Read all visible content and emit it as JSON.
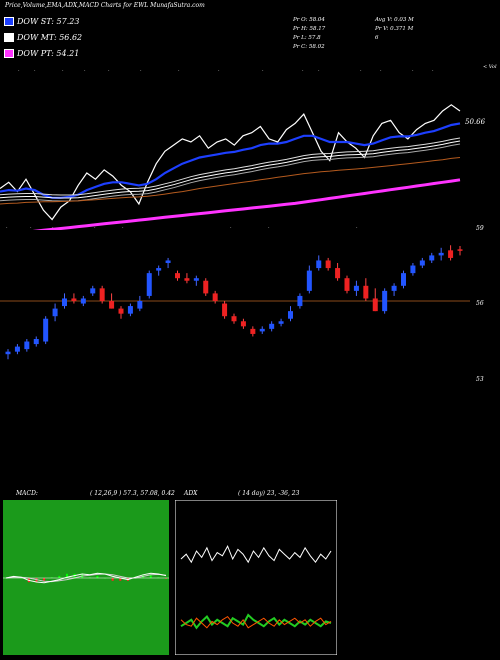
{
  "header": {
    "title": "Price,Volume,EMA,ADX,MACD Charts for EWL MunafaSutra.com"
  },
  "legend": [
    {
      "label": "DOW ST: 57.23",
      "color": "#1d3fff"
    },
    {
      "label": "DOW MT: 56.62",
      "color": "#ffffff"
    },
    {
      "label": "DOW PT: 54.21",
      "color": "#ff33ff"
    }
  ],
  "quote": {
    "pr_o": "Pr O: 58.04",
    "pr_h": "Pr H: 58.17",
    "pr_l": "Pr L: 57.8",
    "pr_c": "Pr C: 58.02",
    "avg_v": "Avg V: 0.03 M",
    "pr_v": "Pr V: 0.371 M",
    "six": "6"
  },
  "top_panel": {
    "price_label": "50.66",
    "vol_label": "< Vol"
  },
  "bottom_right_axis": [
    "59",
    "56",
    "53"
  ],
  "macd": {
    "title": "MACD:",
    "params": "( 12,26,9 ) 57.3, 57.08, 0.42"
  },
  "adx": {
    "title": "ADX",
    "params": "( 14 day) 23, -36, 23"
  },
  "chart_data": [
    {
      "type": "line",
      "name": "ema-panel",
      "series": [
        {
          "name": "price",
          "color": "#ffffff",
          "values": [
            15,
            17,
            14,
            18,
            13,
            8,
            5,
            9,
            11,
            16,
            20,
            18,
            21,
            19,
            16,
            14,
            10,
            17,
            23,
            27,
            29,
            31,
            30,
            32,
            28,
            30,
            31,
            29,
            32,
            33,
            35,
            31,
            30,
            34,
            36,
            39,
            33,
            27,
            24,
            33,
            30,
            28,
            25,
            32,
            36,
            37,
            33,
            31,
            34,
            36,
            37,
            40,
            42,
            40
          ]
        },
        {
          "name": "ema-fast",
          "color": "#1d3fff",
          "values": [
            14,
            14.5,
            14.3,
            15,
            14.5,
            13,
            12,
            12,
            12.3,
            13,
            14.5,
            15.5,
            16.5,
            17,
            17,
            16.5,
            16,
            16.5,
            18,
            20,
            21.5,
            23,
            24,
            25,
            25.5,
            26,
            26.5,
            26.8,
            27.5,
            28,
            29,
            29.5,
            29.5,
            30,
            31,
            32,
            32,
            31,
            30,
            30,
            30,
            29.5,
            29,
            29.5,
            30.5,
            31.5,
            31.8,
            31.8,
            32.3,
            33,
            33.5,
            34.5,
            35.5,
            36
          ]
        },
        {
          "name": "ema-mid",
          "color": "#dddddd",
          "values": [
            13,
            13.2,
            13.3,
            13.4,
            13.4,
            13.2,
            13,
            12.9,
            12.9,
            13,
            13.3,
            13.7,
            14.1,
            14.5,
            14.8,
            15,
            15.1,
            15.3,
            15.8,
            16.5,
            17.2,
            18,
            18.8,
            19.5,
            20,
            20.5,
            21,
            21.4,
            21.9,
            22.4,
            23,
            23.5,
            23.9,
            24.4,
            25,
            25.6,
            26,
            26.2,
            26.3,
            26.6,
            26.8,
            26.9,
            27,
            27.2,
            27.6,
            28,
            28.3,
            28.5,
            28.9,
            29.3,
            29.7,
            30.2,
            30.8,
            31.3
          ]
        },
        {
          "name": "ema-slow",
          "color": "#b45a1e",
          "values": [
            10,
            10.2,
            10.3,
            10.5,
            10.6,
            10.7,
            10.7,
            10.8,
            10.9,
            11,
            11.2,
            11.4,
            11.6,
            11.8,
            12,
            12.2,
            12.3,
            12.5,
            12.8,
            13.2,
            13.6,
            14,
            14.5,
            15,
            15.4,
            15.8,
            16.2,
            16.6,
            17,
            17.4,
            17.8,
            18.2,
            18.6,
            19,
            19.4,
            19.8,
            20.1,
            20.4,
            20.6,
            20.9,
            21.1,
            21.3,
            21.5,
            21.8,
            22.1,
            22.4,
            22.7,
            23,
            23.3,
            23.6,
            24,
            24.3,
            24.7,
            25
          ]
        },
        {
          "name": "ema-long",
          "color": "#ff33ff",
          "values": [
            0,
            0.3,
            0.6,
            0.9,
            1.2,
            1.5,
            1.8,
            2.1,
            2.4,
            2.7,
            3,
            3.3,
            3.6,
            3.9,
            4.2,
            4.5,
            4.8,
            5.1,
            5.4,
            5.7,
            6,
            6.3,
            6.6,
            6.9,
            7.2,
            7.5,
            7.8,
            8.1,
            8.4,
            8.7,
            9,
            9.3,
            9.6,
            9.9,
            10.2,
            10.6,
            11,
            11.4,
            11.8,
            12.2,
            12.6,
            13,
            13.4,
            13.8,
            14.2,
            14.6,
            15,
            15.4,
            15.8,
            16.2,
            16.6,
            17,
            17.4,
            17.8
          ]
        }
      ]
    },
    {
      "type": "candlestick",
      "name": "price-panel",
      "ylim": [
        53,
        59
      ],
      "candles": [
        [
          53.9,
          54.1,
          53.7,
          54.0
        ],
        [
          54.0,
          54.3,
          53.9,
          54.2
        ],
        [
          54.1,
          54.5,
          54.0,
          54.4
        ],
        [
          54.3,
          54.6,
          54.2,
          54.5
        ],
        [
          54.4,
          55.4,
          54.3,
          55.3
        ],
        [
          55.4,
          55.9,
          55.2,
          55.7
        ],
        [
          55.8,
          56.3,
          55.7,
          56.1
        ],
        [
          56.1,
          56.3,
          55.9,
          56.0
        ],
        [
          55.9,
          56.2,
          55.8,
          56.1
        ],
        [
          56.3,
          56.6,
          56.2,
          56.5
        ],
        [
          56.5,
          56.6,
          55.9,
          56.0
        ],
        [
          56.0,
          56.3,
          55.7,
          55.7
        ],
        [
          55.7,
          55.8,
          55.3,
          55.5
        ],
        [
          55.5,
          55.9,
          55.4,
          55.8
        ],
        [
          55.7,
          56.2,
          55.6,
          56.0
        ],
        [
          56.2,
          57.2,
          56.1,
          57.1
        ],
        [
          57.2,
          57.4,
          57.0,
          57.3
        ],
        [
          57.5,
          57.7,
          57.3,
          57.6
        ],
        [
          57.1,
          57.2,
          56.8,
          56.9
        ],
        [
          56.9,
          57.1,
          56.7,
          56.8
        ],
        [
          56.8,
          57.0,
          56.6,
          56.9
        ],
        [
          56.8,
          56.9,
          56.2,
          56.3
        ],
        [
          56.3,
          56.4,
          55.9,
          56.0
        ],
        [
          55.9,
          56.0,
          55.3,
          55.4
        ],
        [
          55.4,
          55.5,
          55.1,
          55.2
        ],
        [
          55.2,
          55.3,
          54.9,
          55.0
        ],
        [
          54.9,
          55.0,
          54.6,
          54.7
        ],
        [
          54.8,
          55.0,
          54.7,
          54.9
        ],
        [
          54.9,
          55.2,
          54.8,
          55.1
        ],
        [
          55.1,
          55.3,
          55.0,
          55.2
        ],
        [
          55.3,
          55.8,
          55.2,
          55.6
        ],
        [
          55.8,
          56.3,
          55.7,
          56.2
        ],
        [
          56.4,
          57.4,
          56.3,
          57.2
        ],
        [
          57.3,
          57.8,
          57.2,
          57.6
        ],
        [
          57.6,
          57.7,
          57.2,
          57.3
        ],
        [
          57.3,
          57.5,
          56.8,
          56.9
        ],
        [
          56.9,
          57.0,
          56.3,
          56.4
        ],
        [
          56.4,
          56.8,
          56.2,
          56.6
        ],
        [
          56.6,
          56.9,
          56.0,
          56.1
        ],
        [
          56.1,
          56.5,
          55.6,
          55.6
        ],
        [
          55.6,
          56.5,
          55.5,
          56.4
        ],
        [
          56.4,
          56.7,
          56.2,
          56.6
        ],
        [
          56.6,
          57.2,
          56.5,
          57.1
        ],
        [
          57.1,
          57.5,
          57.0,
          57.4
        ],
        [
          57.4,
          57.7,
          57.3,
          57.6
        ],
        [
          57.6,
          57.9,
          57.5,
          57.8
        ],
        [
          57.8,
          58.1,
          57.6,
          57.9
        ],
        [
          58.0,
          58.2,
          57.6,
          57.7
        ],
        [
          58.04,
          58.17,
          57.8,
          58.02
        ]
      ]
    },
    {
      "type": "line",
      "name": "macd-panel",
      "series": [
        {
          "name": "macd",
          "color": "#ffffff",
          "values": [
            0,
            0.2,
            0.1,
            -0.3,
            -0.5,
            -0.6,
            -0.4,
            -0.2,
            0.1,
            0.3,
            0.5,
            0.4,
            0.6,
            0.5,
            0.2,
            0,
            -0.2,
            0.1,
            0.4,
            0.6,
            0.5,
            0.3
          ]
        },
        {
          "name": "signal",
          "color": "#cccccc",
          "values": [
            0,
            0.1,
            0.1,
            0,
            -0.2,
            -0.4,
            -0.45,
            -0.35,
            -0.2,
            0,
            0.25,
            0.35,
            0.45,
            0.5,
            0.4,
            0.2,
            0,
            0,
            0.2,
            0.4,
            0.45,
            0.35
          ]
        }
      ]
    },
    {
      "type": "line",
      "name": "adx-panel",
      "series": [
        {
          "name": "adx",
          "color": "#ffffff",
          "values": [
            60,
            63,
            58,
            65,
            61,
            67,
            59,
            64,
            62,
            68,
            60,
            66,
            63,
            58,
            65,
            61,
            67,
            62,
            59,
            66,
            63,
            60,
            64,
            61,
            67,
            62,
            58,
            63,
            60,
            65
          ]
        },
        {
          "name": "plus-di",
          "color": "#22cc22",
          "values": [
            18,
            20,
            22,
            17,
            21,
            24,
            19,
            22,
            20,
            18,
            23,
            21,
            19,
            25,
            22,
            20,
            18,
            21,
            23,
            19,
            22,
            20,
            18,
            21,
            19,
            22,
            20,
            18,
            21,
            20
          ]
        },
        {
          "name": "minus-di",
          "color": "#ff5500",
          "values": [
            22,
            19,
            18,
            23,
            20,
            17,
            21,
            19,
            22,
            24,
            20,
            18,
            22,
            17,
            19,
            21,
            23,
            20,
            18,
            22,
            19,
            21,
            23,
            20,
            22,
            18,
            21,
            23,
            19,
            21
          ]
        }
      ]
    }
  ]
}
